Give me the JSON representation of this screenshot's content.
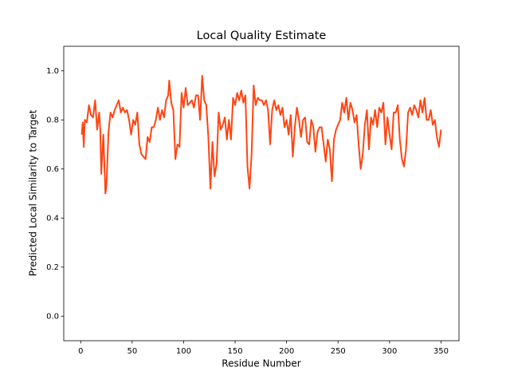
{
  "chart_data": {
    "type": "line",
    "title": "Local Quality Estimate",
    "xlabel": "Residue Number",
    "ylabel": "Predicted Local Similarity to Target",
    "color": "#ff4513",
    "xlim": [
      -16.45,
      367.45
    ],
    "ylim": [
      -0.1,
      1.1
    ],
    "xticks": [
      0,
      50,
      100,
      150,
      200,
      250,
      300,
      350
    ],
    "yticks": [
      {
        "value": 0,
        "label": "0.0"
      },
      0.2,
      0.4,
      0.6,
      0.8,
      {
        "value": 1,
        "label": "1.0"
      }
    ],
    "x": [
      1,
      2,
      3,
      4,
      6,
      8,
      10,
      12,
      14,
      16,
      18,
      19,
      20,
      22,
      24,
      25,
      27,
      29,
      31,
      33,
      35,
      37,
      39,
      41,
      43,
      45,
      47,
      49,
      51,
      53,
      55,
      57,
      59,
      61,
      63,
      65,
      67,
      69,
      71,
      73,
      75,
      77,
      79,
      81,
      83,
      85,
      86,
      88,
      90,
      92,
      94,
      96,
      98,
      100,
      102,
      104,
      106,
      108,
      110,
      112,
      114,
      116,
      118,
      120,
      122,
      124,
      126,
      128,
      130,
      132,
      134,
      136,
      138,
      140,
      142,
      144,
      146,
      148,
      150,
      152,
      154,
      156,
      158,
      160,
      162,
      164,
      166,
      168,
      170,
      172,
      174,
      176,
      178,
      180,
      182,
      184,
      186,
      188,
      190,
      192,
      194,
      196,
      198,
      200,
      202,
      204,
      206,
      208,
      210,
      212,
      214,
      216,
      218,
      220,
      222,
      224,
      226,
      228,
      230,
      232,
      234,
      236,
      238,
      240,
      242,
      244,
      246,
      248,
      250,
      252,
      254,
      256,
      258,
      260,
      262,
      264,
      266,
      268,
      270,
      272,
      274,
      276,
      278,
      280,
      282,
      284,
      286,
      288,
      290,
      292,
      294,
      296,
      298,
      300,
      302,
      304,
      306,
      308,
      310,
      312,
      314,
      316,
      318,
      320,
      322,
      324,
      326,
      328,
      330,
      332,
      334,
      336,
      338,
      340,
      342,
      344,
      346,
      348,
      350
    ],
    "values": [
      0.74,
      0.79,
      0.69,
      0.8,
      0.79,
      0.86,
      0.82,
      0.81,
      0.88,
      0.76,
      0.83,
      0.76,
      0.58,
      0.74,
      0.5,
      0.53,
      0.75,
      0.83,
      0.81,
      0.84,
      0.86,
      0.88,
      0.83,
      0.85,
      0.83,
      0.84,
      0.8,
      0.74,
      0.8,
      0.78,
      0.83,
      0.7,
      0.66,
      0.65,
      0.64,
      0.73,
      0.71,
      0.77,
      0.77,
      0.8,
      0.85,
      0.8,
      0.84,
      0.81,
      0.88,
      0.9,
      0.96,
      0.87,
      0.84,
      0.64,
      0.7,
      0.69,
      0.91,
      0.85,
      0.93,
      0.86,
      0.87,
      0.88,
      0.85,
      0.9,
      0.9,
      0.8,
      0.98,
      0.88,
      0.86,
      0.73,
      0.52,
      0.71,
      0.57,
      0.62,
      0.83,
      0.76,
      0.78,
      0.81,
      0.72,
      0.8,
      0.72,
      0.89,
      0.86,
      0.91,
      0.88,
      0.92,
      0.87,
      0.9,
      0.61,
      0.52,
      0.66,
      0.94,
      0.86,
      0.89,
      0.88,
      0.88,
      0.86,
      0.88,
      0.84,
      0.7,
      0.84,
      0.88,
      0.84,
      0.86,
      0.82,
      0.85,
      0.77,
      0.8,
      0.74,
      0.82,
      0.65,
      0.77,
      0.85,
      0.8,
      0.73,
      0.8,
      0.81,
      0.71,
      0.7,
      0.8,
      0.77,
      0.67,
      0.75,
      0.77,
      0.77,
      0.7,
      0.63,
      0.72,
      0.68,
      0.55,
      0.72,
      0.76,
      0.78,
      0.8,
      0.87,
      0.83,
      0.89,
      0.8,
      0.87,
      0.84,
      0.79,
      0.82,
      0.7,
      0.6,
      0.66,
      0.78,
      0.84,
      0.68,
      0.81,
      0.78,
      0.84,
      0.77,
      0.85,
      0.83,
      0.87,
      0.7,
      0.81,
      0.74,
      0.68,
      0.83,
      0.83,
      0.86,
      0.72,
      0.64,
      0.61,
      0.68,
      0.83,
      0.85,
      0.82,
      0.86,
      0.84,
      0.81,
      0.88,
      0.83,
      0.89,
      0.8,
      0.8,
      0.84,
      0.78,
      0.8,
      0.73,
      0.69,
      0.76
    ]
  }
}
